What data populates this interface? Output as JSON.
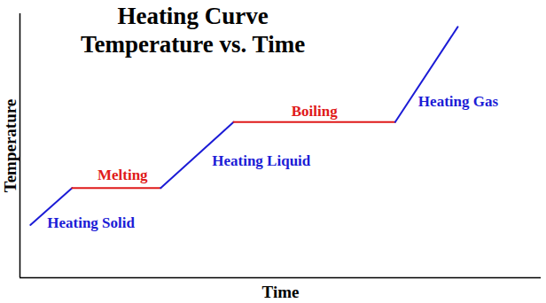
{
  "chart_data": {
    "type": "line",
    "title": "Heating Curve",
    "subtitle": "Temperature vs. Time",
    "x_label": "Time",
    "y_label": "Temperature",
    "xlim": [
      0,
      100
    ],
    "ylim": [
      0,
      100
    ],
    "xticks": [],
    "yticks": [],
    "tick_labels": false,
    "series": [
      {
        "name": "Heating Solid",
        "color": "#1c1cd6",
        "x": [
          2,
          10
        ],
        "values": [
          20,
          34
        ]
      },
      {
        "name": "Melting",
        "color": "#e01a1a",
        "x": [
          10,
          27
        ],
        "values": [
          34,
          34
        ]
      },
      {
        "name": "Heating Liquid",
        "color": "#1c1cd6",
        "x": [
          27,
          41
        ],
        "values": [
          34,
          59
        ]
      },
      {
        "name": "Boiling",
        "color": "#e01a1a",
        "x": [
          41,
          72
        ],
        "values": [
          59,
          59
        ]
      },
      {
        "name": "Heating Gas",
        "color": "#1c1cd6",
        "x": [
          72,
          84
        ],
        "values": [
          59,
          95
        ]
      }
    ]
  }
}
